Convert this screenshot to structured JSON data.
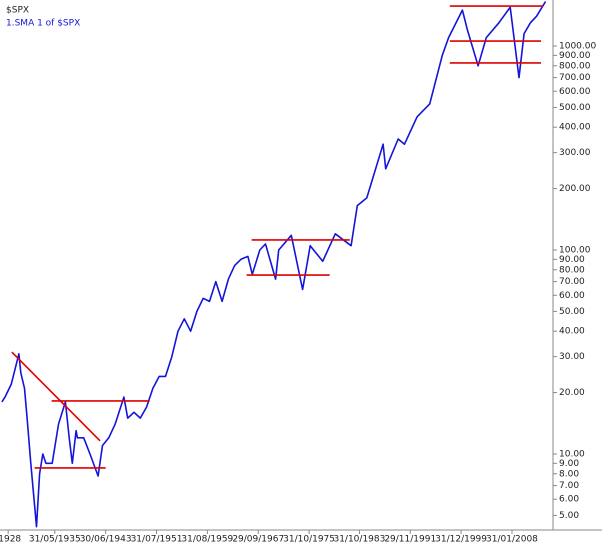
{
  "chart_data": {
    "type": "line",
    "title": "$SPX",
    "log_scale": true,
    "grid": false,
    "xlim": [
      1926.7,
      2014.6
    ],
    "ylim": [
      4.24,
      1681
    ],
    "xticks": [
      {
        "value": 1928.0,
        "label": "/1928"
      },
      {
        "value": 1935.41,
        "label": "31/05/1935"
      },
      {
        "value": 1943.49,
        "label": "30/06/1943"
      },
      {
        "value": 1951.58,
        "label": "31/07/1951"
      },
      {
        "value": 1959.66,
        "label": "31/08/1959"
      },
      {
        "value": 1967.75,
        "label": "29/09/1967"
      },
      {
        "value": 1975.83,
        "label": "31/10/1975"
      },
      {
        "value": 1983.83,
        "label": "31/10/1983"
      },
      {
        "value": 1991.91,
        "label": "29/11/1991"
      },
      {
        "value": 1999.99,
        "label": "31/12/1999"
      },
      {
        "value": 2008.08,
        "label": "31/01/2008"
      }
    ],
    "yticks": [
      {
        "value": 1000,
        "label": "1000.00"
      },
      {
        "value": 900,
        "label": "900.00"
      },
      {
        "value": 800,
        "label": "800.00"
      },
      {
        "value": 700,
        "label": "700.00"
      },
      {
        "value": 600,
        "label": "600.00"
      },
      {
        "value": 500,
        "label": "500.00"
      },
      {
        "value": 400,
        "label": "400.00"
      },
      {
        "value": 300,
        "label": "300.00"
      },
      {
        "value": 200,
        "label": "200.00"
      },
      {
        "value": 100,
        "label": "100.00"
      },
      {
        "value": 90,
        "label": "90.00"
      },
      {
        "value": 80,
        "label": "80.00"
      },
      {
        "value": 70,
        "label": "70.00"
      },
      {
        "value": 60,
        "label": "60.00"
      },
      {
        "value": 50,
        "label": "50.00"
      },
      {
        "value": 40,
        "label": "40.00"
      },
      {
        "value": 30,
        "label": "30.00"
      },
      {
        "value": 20,
        "label": "20.00"
      },
      {
        "value": 10,
        "label": "10.00"
      },
      {
        "value": 9,
        "label": "9.00"
      },
      {
        "value": 8,
        "label": "8.00"
      },
      {
        "value": 7,
        "label": "7.00"
      },
      {
        "value": 6,
        "label": "6.00"
      },
      {
        "value": 5,
        "label": "5.00"
      }
    ],
    "x": [
      1927.0,
      1927.5,
      1928.5,
      1929.7,
      1930.0,
      1930.6,
      1931.0,
      1931.6,
      1932.5,
      1933.0,
      1933.5,
      1934.0,
      1935.0,
      1936.0,
      1937.1,
      1937.7,
      1938.2,
      1938.8,
      1939.0,
      1940.0,
      1941.0,
      1942.3,
      1943.0,
      1944.0,
      1945.0,
      1946.4,
      1947.0,
      1948.0,
      1949.0,
      1950.0,
      1951.0,
      1952.0,
      1953.0,
      1954.0,
      1955.0,
      1956.0,
      1957.0,
      1958.0,
      1959.0,
      1960.0,
      1961.0,
      1962.0,
      1963.0,
      1964.0,
      1965.0,
      1966.1,
      1966.8,
      1968.0,
      1968.9,
      1970.5,
      1971.0,
      1973.0,
      1974.8,
      1976.0,
      1978.0,
      1980.0,
      1982.5,
      1983.5,
      1985.0,
      1987.6,
      1988.0,
      1990.0,
      1991.0,
      1993.0,
      1995.0,
      1997.0,
      1998.0,
      2000.2,
      2001.0,
      2002.7,
      2004.0,
      2006.0,
      2007.8,
      2009.2,
      2010.0,
      2011.0,
      2012.0,
      2013.4
    ],
    "series": [
      {
        "name": "1.SMA 1  of $SPX",
        "color": "#1414dc",
        "values": [
          18,
          19,
          22,
          31,
          25,
          21,
          15,
          9,
          4.4,
          8,
          10,
          9,
          9,
          14,
          18,
          12,
          9,
          13,
          12,
          12,
          10,
          7.8,
          11,
          12,
          14,
          19,
          15,
          16,
          15,
          17,
          21,
          24,
          24,
          30,
          40,
          46,
          40,
          50,
          58,
          56,
          70,
          56,
          72,
          84,
          90,
          93,
          76,
          100,
          107,
          72,
          100,
          118,
          64,
          105,
          88,
          120,
          105,
          165,
          180,
          330,
          250,
          350,
          330,
          450,
          520,
          900,
          1100,
          1500,
          1200,
          800,
          1100,
          1300,
          1550,
          700,
          1150,
          1300,
          1400,
          1650
        ]
      }
    ],
    "lines": [
      {
        "color": "#e00000",
        "x": [
          1928.58,
          1942.6
        ],
        "y": [
          31.6,
          11.6
        ]
      },
      {
        "color": "#e00000",
        "x": [
          1934.9,
          1950.5
        ],
        "y": [
          18.2,
          18.2
        ]
      },
      {
        "color": "#e00000",
        "x": [
          1932.2,
          1943.5
        ],
        "y": [
          8.54,
          8.54
        ]
      },
      {
        "color": "#e00000",
        "x": [
          1966.7,
          1982.3
        ],
        "y": [
          112,
          112
        ]
      },
      {
        "color": "#e00000",
        "x": [
          1965.9,
          1979.1
        ],
        "y": [
          75.4,
          75.4
        ]
      },
      {
        "color": "#e00000",
        "x": [
          1998.2,
          2013.0
        ],
        "y": [
          1570,
          1570
        ]
      },
      {
        "color": "#e00000",
        "x": [
          1998.2,
          2012.7
        ],
        "y": [
          1058,
          1058
        ]
      },
      {
        "color": "#e00000",
        "x": [
          1998.2,
          2012.7
        ],
        "y": [
          826,
          826
        ]
      }
    ]
  }
}
